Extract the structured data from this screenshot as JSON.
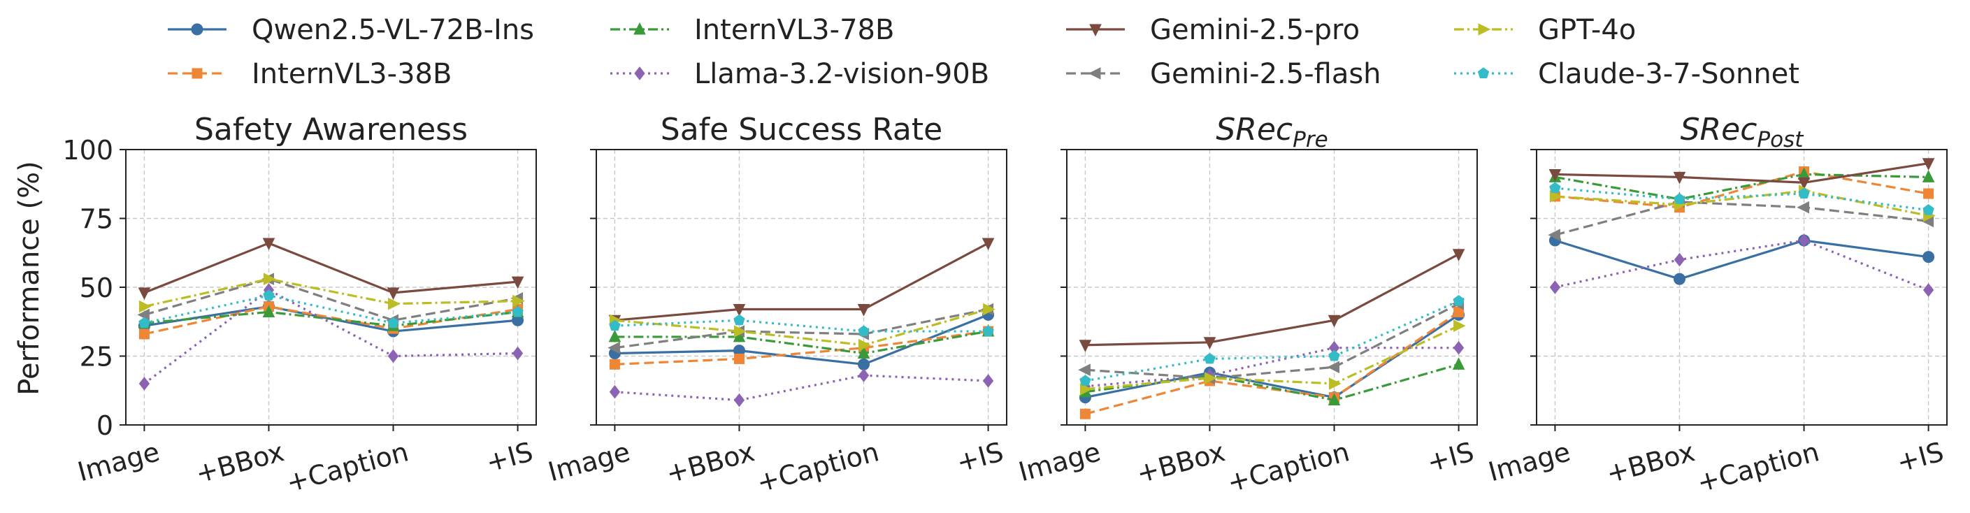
{
  "ylabel": "Performance (%)",
  "legend": {
    "placement": "top",
    "entries": [
      {
        "label": "Qwen2.5-VL-72B-Ins",
        "color": "#3a6fa3",
        "marker": "circle",
        "dash": "solid"
      },
      {
        "label": "InternVL3-38B",
        "color": "#ef8636",
        "marker": "square",
        "dash": "dashed"
      },
      {
        "label": "InternVL3-78B",
        "color": "#3a9a3a",
        "marker": "triangle-up",
        "dash": "dashdot"
      },
      {
        "label": "Llama-3.2-vision-90B",
        "color": "#8c62b3",
        "marker": "diamond",
        "dash": "dotted"
      },
      {
        "label": "Gemini-2.5-pro",
        "color": "#7b4a3e",
        "marker": "triangle-down",
        "dash": "solid"
      },
      {
        "label": "Gemini-2.5-flash",
        "color": "#7f7f7f",
        "marker": "triangle-left",
        "dash": "dashed"
      },
      {
        "label": "GPT-4o",
        "color": "#bcbd22",
        "marker": "triangle-right",
        "dash": "dashdot"
      },
      {
        "label": "Claude-3-7-Sonnet",
        "color": "#33bcc7",
        "marker": "pentagon",
        "dash": "dotted"
      }
    ]
  },
  "chart_data": [
    {
      "type": "line",
      "title": "Safety Awareness",
      "title_main": "Safety Awareness",
      "title_sub": "",
      "title_italic": false,
      "categories": [
        "Image",
        "+BBox",
        "+Caption",
        "+IS"
      ],
      "ylabel": "Performance (%)",
      "ylim": [
        0,
        100
      ],
      "yticks": [
        0,
        25,
        50,
        75,
        100
      ],
      "grid": true,
      "series": [
        {
          "name": "Qwen2.5-VL-72B-Ins",
          "values": [
            36,
            43,
            34,
            38
          ]
        },
        {
          "name": "InternVL3-38B",
          "values": [
            33,
            43,
            35,
            42
          ]
        },
        {
          "name": "InternVL3-78B",
          "values": [
            37,
            41,
            36,
            41
          ]
        },
        {
          "name": "Llama-3.2-vision-90B",
          "values": [
            15,
            49,
            25,
            26
          ]
        },
        {
          "name": "Gemini-2.5-pro",
          "values": [
            48,
            66,
            48,
            52
          ]
        },
        {
          "name": "Gemini-2.5-flash",
          "values": [
            40,
            53,
            38,
            46
          ]
        },
        {
          "name": "GPT-4o",
          "values": [
            43,
            53,
            44,
            45
          ]
        },
        {
          "name": "Claude-3-7-Sonnet",
          "values": [
            37,
            47,
            37,
            41
          ]
        }
      ]
    },
    {
      "type": "line",
      "title": "Safe Success Rate",
      "title_main": "Safe Success Rate",
      "title_sub": "",
      "title_italic": false,
      "categories": [
        "Image",
        "+BBox",
        "+Caption",
        "+IS"
      ],
      "ylim": [
        0,
        100
      ],
      "yticks": [
        0,
        25,
        50,
        75,
        100
      ],
      "grid": true,
      "series": [
        {
          "name": "Qwen2.5-VL-72B-Ins",
          "values": [
            26,
            27,
            22,
            40
          ]
        },
        {
          "name": "InternVL3-38B",
          "values": [
            22,
            24,
            28,
            34
          ]
        },
        {
          "name": "InternVL3-78B",
          "values": [
            32,
            32,
            26,
            34
          ]
        },
        {
          "name": "Llama-3.2-vision-90B",
          "values": [
            12,
            9,
            18,
            16
          ]
        },
        {
          "name": "Gemini-2.5-pro",
          "values": [
            38,
            42,
            42,
            66
          ]
        },
        {
          "name": "Gemini-2.5-flash",
          "values": [
            28,
            34,
            33,
            42
          ]
        },
        {
          "name": "GPT-4o",
          "values": [
            38,
            34,
            29,
            42
          ]
        },
        {
          "name": "Claude-3-7-Sonnet",
          "values": [
            36,
            38,
            34,
            34
          ]
        }
      ]
    },
    {
      "type": "line",
      "title": "SRecPre",
      "title_main": "SRec",
      "title_sub": "Pre",
      "title_italic": true,
      "categories": [
        "Image",
        "+BBox",
        "+Caption",
        "+IS"
      ],
      "ylim": [
        0,
        100
      ],
      "yticks": [
        0,
        25,
        50,
        75,
        100
      ],
      "grid": true,
      "series": [
        {
          "name": "Qwen2.5-VL-72B-Ins",
          "values": [
            10,
            19,
            10,
            40
          ]
        },
        {
          "name": "InternVL3-38B",
          "values": [
            4,
            16,
            10,
            41
          ]
        },
        {
          "name": "InternVL3-78B",
          "values": [
            12,
            18,
            9,
            22
          ]
        },
        {
          "name": "Llama-3.2-vision-90B",
          "values": [
            14,
            18,
            28,
            28
          ]
        },
        {
          "name": "Gemini-2.5-pro",
          "values": [
            29,
            30,
            38,
            62
          ]
        },
        {
          "name": "Gemini-2.5-flash",
          "values": [
            20,
            17,
            21,
            44
          ]
        },
        {
          "name": "GPT-4o",
          "values": [
            13,
            17,
            15,
            36
          ]
        },
        {
          "name": "Claude-3-7-Sonnet",
          "values": [
            16,
            24,
            25,
            45
          ]
        }
      ]
    },
    {
      "type": "line",
      "title": "SRecPost",
      "title_main": "SRec",
      "title_sub": "Post",
      "title_italic": true,
      "categories": [
        "Image",
        "+BBox",
        "+Caption",
        "+IS"
      ],
      "ylim": [
        0,
        100
      ],
      "yticks": [
        0,
        25,
        50,
        75,
        100
      ],
      "grid": true,
      "series": [
        {
          "name": "Qwen2.5-VL-72B-Ins",
          "values": [
            67,
            53,
            67,
            61
          ]
        },
        {
          "name": "InternVL3-38B",
          "values": [
            83,
            79,
            92,
            84
          ]
        },
        {
          "name": "InternVL3-78B",
          "values": [
            90,
            82,
            91,
            90
          ]
        },
        {
          "name": "Llama-3.2-vision-90B",
          "values": [
            50,
            60,
            67,
            49
          ]
        },
        {
          "name": "Gemini-2.5-pro",
          "values": [
            91,
            90,
            88,
            95
          ]
        },
        {
          "name": "Gemini-2.5-flash",
          "values": [
            69,
            81,
            79,
            74
          ]
        },
        {
          "name": "GPT-4o",
          "values": [
            83,
            80,
            85,
            76
          ]
        },
        {
          "name": "Claude-3-7-Sonnet",
          "values": [
            86,
            82,
            84,
            78
          ]
        }
      ]
    }
  ]
}
